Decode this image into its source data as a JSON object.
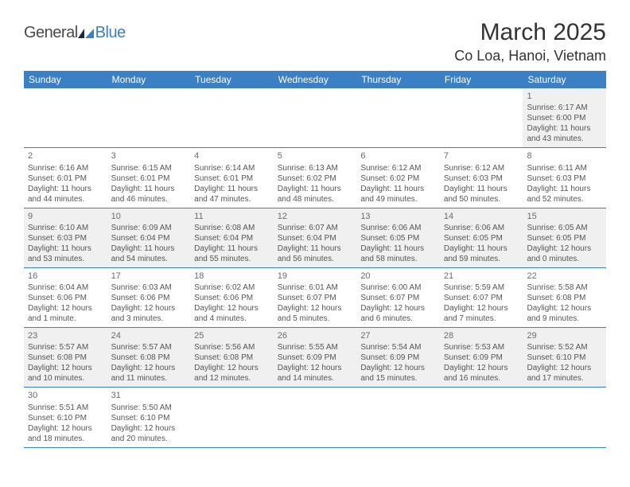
{
  "logo": {
    "general": "General",
    "blue": "Blue"
  },
  "header": {
    "month_year": "March 2025",
    "location": "Co Loa, Hanoi, Vietnam"
  },
  "colors": {
    "header_bg": "#3b7fc4",
    "alt_row": "#f0f0f0"
  },
  "dayheads": [
    "Sunday",
    "Monday",
    "Tuesday",
    "Wednesday",
    "Thursday",
    "Friday",
    "Saturday"
  ],
  "weeks": [
    {
      "alt": true,
      "cells": [
        {
          "empty": true
        },
        {
          "empty": true
        },
        {
          "empty": true
        },
        {
          "empty": true
        },
        {
          "empty": true
        },
        {
          "empty": true
        },
        {
          "day": "1",
          "sunrise": "Sunrise: 6:17 AM",
          "sunset": "Sunset: 6:00 PM",
          "daylight1": "Daylight: 11 hours",
          "daylight2": "and 43 minutes."
        }
      ]
    },
    {
      "alt": false,
      "cells": [
        {
          "day": "2",
          "sunrise": "Sunrise: 6:16 AM",
          "sunset": "Sunset: 6:01 PM",
          "daylight1": "Daylight: 11 hours",
          "daylight2": "and 44 minutes."
        },
        {
          "day": "3",
          "sunrise": "Sunrise: 6:15 AM",
          "sunset": "Sunset: 6:01 PM",
          "daylight1": "Daylight: 11 hours",
          "daylight2": "and 46 minutes."
        },
        {
          "day": "4",
          "sunrise": "Sunrise: 6:14 AM",
          "sunset": "Sunset: 6:01 PM",
          "daylight1": "Daylight: 11 hours",
          "daylight2": "and 47 minutes."
        },
        {
          "day": "5",
          "sunrise": "Sunrise: 6:13 AM",
          "sunset": "Sunset: 6:02 PM",
          "daylight1": "Daylight: 11 hours",
          "daylight2": "and 48 minutes."
        },
        {
          "day": "6",
          "sunrise": "Sunrise: 6:12 AM",
          "sunset": "Sunset: 6:02 PM",
          "daylight1": "Daylight: 11 hours",
          "daylight2": "and 49 minutes."
        },
        {
          "day": "7",
          "sunrise": "Sunrise: 6:12 AM",
          "sunset": "Sunset: 6:03 PM",
          "daylight1": "Daylight: 11 hours",
          "daylight2": "and 50 minutes."
        },
        {
          "day": "8",
          "sunrise": "Sunrise: 6:11 AM",
          "sunset": "Sunset: 6:03 PM",
          "daylight1": "Daylight: 11 hours",
          "daylight2": "and 52 minutes."
        }
      ]
    },
    {
      "alt": true,
      "cells": [
        {
          "day": "9",
          "sunrise": "Sunrise: 6:10 AM",
          "sunset": "Sunset: 6:03 PM",
          "daylight1": "Daylight: 11 hours",
          "daylight2": "and 53 minutes."
        },
        {
          "day": "10",
          "sunrise": "Sunrise: 6:09 AM",
          "sunset": "Sunset: 6:04 PM",
          "daylight1": "Daylight: 11 hours",
          "daylight2": "and 54 minutes."
        },
        {
          "day": "11",
          "sunrise": "Sunrise: 6:08 AM",
          "sunset": "Sunset: 6:04 PM",
          "daylight1": "Daylight: 11 hours",
          "daylight2": "and 55 minutes."
        },
        {
          "day": "12",
          "sunrise": "Sunrise: 6:07 AM",
          "sunset": "Sunset: 6:04 PM",
          "daylight1": "Daylight: 11 hours",
          "daylight2": "and 56 minutes."
        },
        {
          "day": "13",
          "sunrise": "Sunrise: 6:06 AM",
          "sunset": "Sunset: 6:05 PM",
          "daylight1": "Daylight: 11 hours",
          "daylight2": "and 58 minutes."
        },
        {
          "day": "14",
          "sunrise": "Sunrise: 6:06 AM",
          "sunset": "Sunset: 6:05 PM",
          "daylight1": "Daylight: 11 hours",
          "daylight2": "and 59 minutes."
        },
        {
          "day": "15",
          "sunrise": "Sunrise: 6:05 AM",
          "sunset": "Sunset: 6:05 PM",
          "daylight1": "Daylight: 12 hours",
          "daylight2": "and 0 minutes."
        }
      ]
    },
    {
      "alt": false,
      "cells": [
        {
          "day": "16",
          "sunrise": "Sunrise: 6:04 AM",
          "sunset": "Sunset: 6:06 PM",
          "daylight1": "Daylight: 12 hours",
          "daylight2": "and 1 minute."
        },
        {
          "day": "17",
          "sunrise": "Sunrise: 6:03 AM",
          "sunset": "Sunset: 6:06 PM",
          "daylight1": "Daylight: 12 hours",
          "daylight2": "and 3 minutes."
        },
        {
          "day": "18",
          "sunrise": "Sunrise: 6:02 AM",
          "sunset": "Sunset: 6:06 PM",
          "daylight1": "Daylight: 12 hours",
          "daylight2": "and 4 minutes."
        },
        {
          "day": "19",
          "sunrise": "Sunrise: 6:01 AM",
          "sunset": "Sunset: 6:07 PM",
          "daylight1": "Daylight: 12 hours",
          "daylight2": "and 5 minutes."
        },
        {
          "day": "20",
          "sunrise": "Sunrise: 6:00 AM",
          "sunset": "Sunset: 6:07 PM",
          "daylight1": "Daylight: 12 hours",
          "daylight2": "and 6 minutes."
        },
        {
          "day": "21",
          "sunrise": "Sunrise: 5:59 AM",
          "sunset": "Sunset: 6:07 PM",
          "daylight1": "Daylight: 12 hours",
          "daylight2": "and 7 minutes."
        },
        {
          "day": "22",
          "sunrise": "Sunrise: 5:58 AM",
          "sunset": "Sunset: 6:08 PM",
          "daylight1": "Daylight: 12 hours",
          "daylight2": "and 9 minutes."
        }
      ]
    },
    {
      "alt": true,
      "cells": [
        {
          "day": "23",
          "sunrise": "Sunrise: 5:57 AM",
          "sunset": "Sunset: 6:08 PM",
          "daylight1": "Daylight: 12 hours",
          "daylight2": "and 10 minutes."
        },
        {
          "day": "24",
          "sunrise": "Sunrise: 5:57 AM",
          "sunset": "Sunset: 6:08 PM",
          "daylight1": "Daylight: 12 hours",
          "daylight2": "and 11 minutes."
        },
        {
          "day": "25",
          "sunrise": "Sunrise: 5:56 AM",
          "sunset": "Sunset: 6:08 PM",
          "daylight1": "Daylight: 12 hours",
          "daylight2": "and 12 minutes."
        },
        {
          "day": "26",
          "sunrise": "Sunrise: 5:55 AM",
          "sunset": "Sunset: 6:09 PM",
          "daylight1": "Daylight: 12 hours",
          "daylight2": "and 14 minutes."
        },
        {
          "day": "27",
          "sunrise": "Sunrise: 5:54 AM",
          "sunset": "Sunset: 6:09 PM",
          "daylight1": "Daylight: 12 hours",
          "daylight2": "and 15 minutes."
        },
        {
          "day": "28",
          "sunrise": "Sunrise: 5:53 AM",
          "sunset": "Sunset: 6:09 PM",
          "daylight1": "Daylight: 12 hours",
          "daylight2": "and 16 minutes."
        },
        {
          "day": "29",
          "sunrise": "Sunrise: 5:52 AM",
          "sunset": "Sunset: 6:10 PM",
          "daylight1": "Daylight: 12 hours",
          "daylight2": "and 17 minutes."
        }
      ]
    },
    {
      "alt": false,
      "cells": [
        {
          "day": "30",
          "sunrise": "Sunrise: 5:51 AM",
          "sunset": "Sunset: 6:10 PM",
          "daylight1": "Daylight: 12 hours",
          "daylight2": "and 18 minutes."
        },
        {
          "day": "31",
          "sunrise": "Sunrise: 5:50 AM",
          "sunset": "Sunset: 6:10 PM",
          "daylight1": "Daylight: 12 hours",
          "daylight2": "and 20 minutes."
        },
        {
          "empty": true
        },
        {
          "empty": true
        },
        {
          "empty": true
        },
        {
          "empty": true
        },
        {
          "empty": true
        }
      ]
    }
  ]
}
